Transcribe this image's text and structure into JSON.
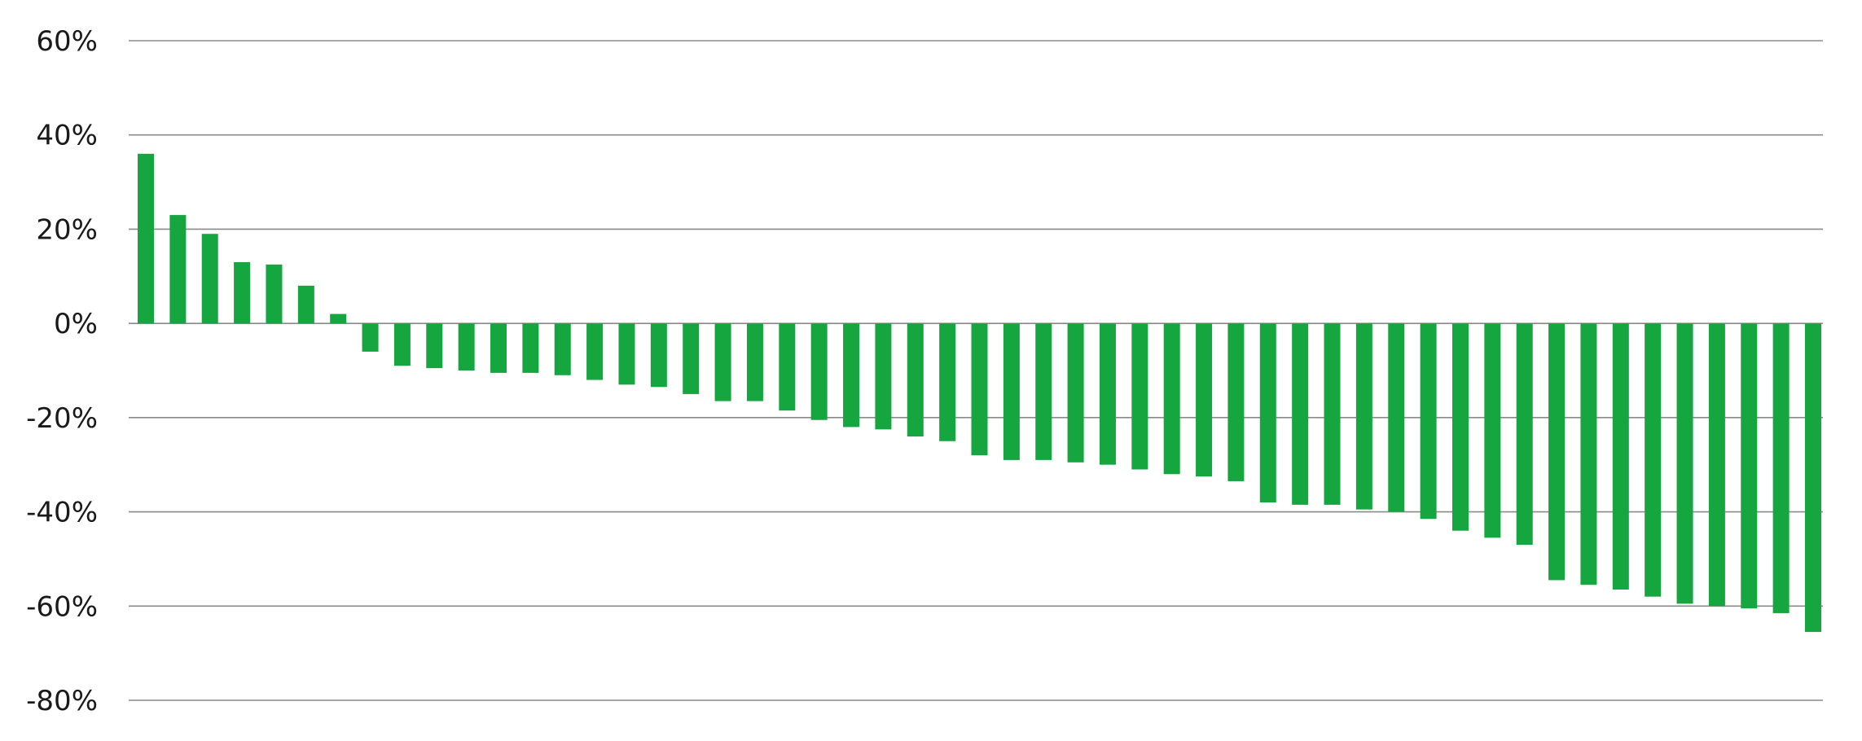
{
  "chart_data": {
    "type": "bar",
    "title": "",
    "xlabel": "",
    "ylabel": "",
    "ylim": [
      -80,
      60
    ],
    "y_ticks": [
      60,
      40,
      20,
      0,
      -20,
      -40,
      -60,
      -80
    ],
    "y_tick_labels": [
      "60%",
      "40%",
      "20%",
      "0%",
      "-20%",
      "-40%",
      "-60%",
      "-80%"
    ],
    "grid": true,
    "legend": "none",
    "bar_color": "#16a63f",
    "values": [
      36,
      23,
      19,
      13,
      12.5,
      8,
      2,
      -6,
      -9,
      -9.5,
      -10,
      -10.5,
      -10.5,
      -11,
      -12,
      -13,
      -13.5,
      -15,
      -16.5,
      -16.5,
      -18.5,
      -20.5,
      -22,
      -22.5,
      -24,
      -25,
      -28,
      -29,
      -29,
      -29.5,
      -30,
      -31,
      -32,
      -32.5,
      -33.5,
      -38,
      -38.5,
      -38.5,
      -39.5,
      -40,
      -41.5,
      -44,
      -45.5,
      -47,
      -54.5,
      -55.5,
      -56.5,
      -58,
      -59.5,
      -60,
      -60.5,
      -61.5,
      -65.5
    ]
  }
}
